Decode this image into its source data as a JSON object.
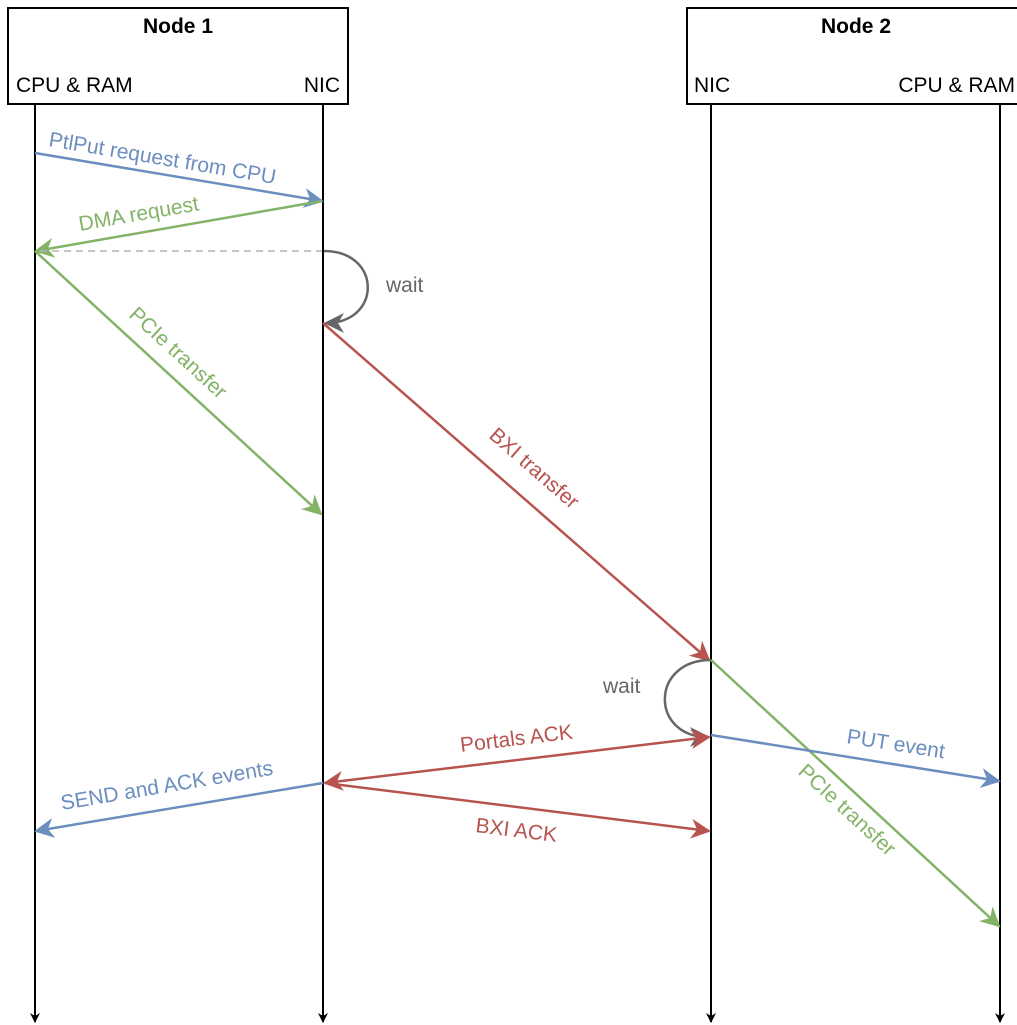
{
  "node1": {
    "title": "Node 1",
    "left_label": "CPU & RAM",
    "right_label": "NIC"
  },
  "node2": {
    "title": "Node 2",
    "left_label": "NIC",
    "right_label": "CPU & RAM"
  },
  "messages": {
    "ptlput": "PtlPut request from CPU",
    "dma": "DMA request",
    "pcie1": "PCIe transfer",
    "wait1": "wait",
    "bxi": "BXI transfer",
    "wait2": "wait",
    "portals_ack": "Portals ACK",
    "put_event": "PUT event",
    "pcie2": "PCIe transfer",
    "send_ack": "SEND and ACK events",
    "bxi_ack": "BXI ACK"
  },
  "colors": {
    "blue": "#6c8ebf",
    "green": "#82b366",
    "red": "#b85450",
    "gray": "#666666",
    "dashed": "#b3b3b3"
  }
}
